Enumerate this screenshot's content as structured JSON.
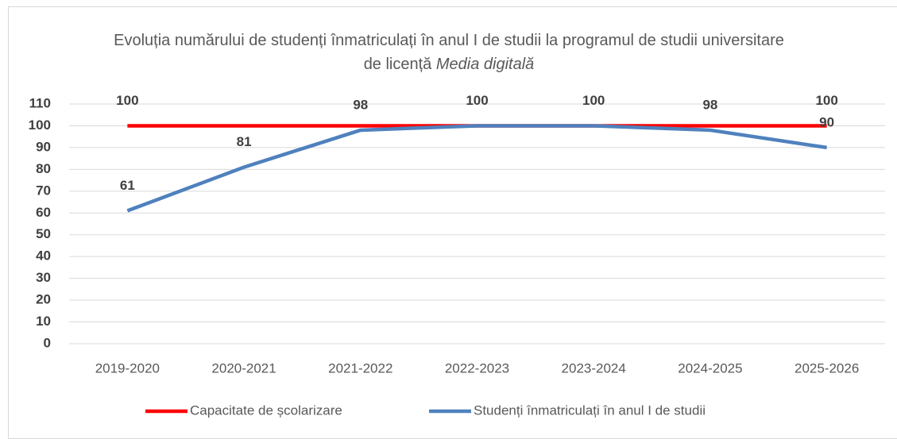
{
  "chart_data": {
    "type": "line",
    "title": [
      "Evoluția numărului de studenți înmatriculați în anul I de studii la programul de studii universitare de licență",
      "Media digitală"
    ],
    "categories": [
      "2019-2020",
      "2020-2021",
      "2021-2022",
      "2022-2023",
      "2023-2024",
      "2024-2025",
      "2025-2026"
    ],
    "series": [
      {
        "name": "Capacitate de școlarizare",
        "color": "#ff0000",
        "values": [
          100,
          100,
          100,
          100,
          100,
          100,
          100
        ],
        "value_labels": [
          "100",
          null,
          null,
          null,
          null,
          null,
          "100"
        ]
      },
      {
        "name": "Studenți înmatriculați în anul I de studii",
        "color": "#4f81bd",
        "values": [
          61,
          81,
          98,
          100,
          100,
          98,
          90
        ]
      }
    ],
    "ylim": [
      0,
      110
    ],
    "yticks": [
      0,
      10,
      20,
      30,
      40,
      50,
      60,
      70,
      80,
      90,
      100,
      110
    ],
    "grid": true,
    "legend": "bottom"
  }
}
